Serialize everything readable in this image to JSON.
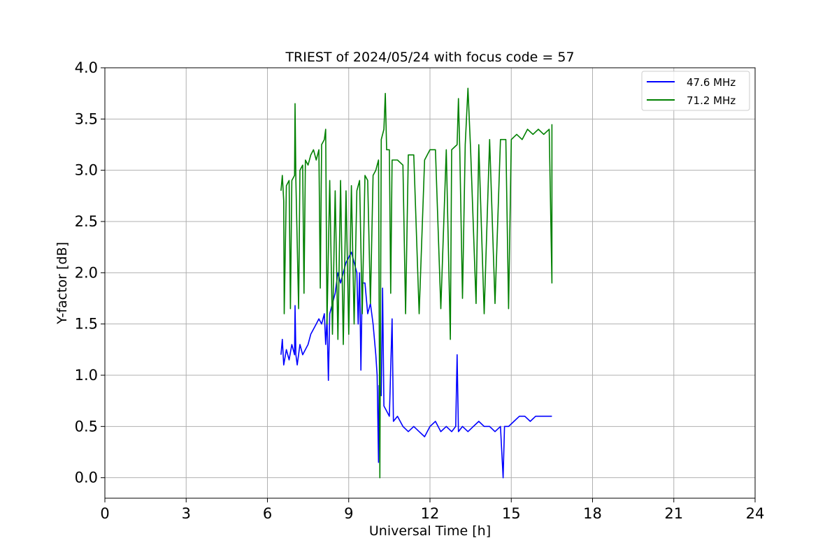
{
  "chart_data": {
    "type": "line",
    "title": "TRIEST of 2024/05/24 with focus code = 57",
    "xlabel": "Universal Time [h]",
    "ylabel": "Y-factor [dB]",
    "xlim": [
      0,
      24
    ],
    "ylim": [
      -0.2,
      4.0
    ],
    "xticks": [
      0,
      3,
      6,
      9,
      12,
      15,
      18,
      21,
      24
    ],
    "xtick_labels": [
      "0",
      "3",
      "6",
      "9",
      "12",
      "15",
      "18",
      "21",
      "24"
    ],
    "yticks": [
      0.0,
      0.5,
      1.0,
      1.5,
      2.0,
      2.5,
      3.0,
      3.5,
      4.0
    ],
    "ytick_labels": [
      "0.0",
      "0.5",
      "1.0",
      "1.5",
      "2.0",
      "2.5",
      "3.0",
      "3.5",
      "4.0"
    ],
    "grid": true,
    "legend_position": "top-right",
    "series": [
      {
        "name": "47.6 MHz",
        "color": "#0000ff",
        "points": [
          [
            6.5,
            1.2
          ],
          [
            6.55,
            1.35
          ],
          [
            6.6,
            1.1
          ],
          [
            6.7,
            1.25
          ],
          [
            6.8,
            1.15
          ],
          [
            6.9,
            1.3
          ],
          [
            7.0,
            1.2
          ],
          [
            7.02,
            1.68
          ],
          [
            7.05,
            1.2
          ],
          [
            7.1,
            1.1
          ],
          [
            7.2,
            1.3
          ],
          [
            7.3,
            1.2
          ],
          [
            7.4,
            1.25
          ],
          [
            7.5,
            1.3
          ],
          [
            7.6,
            1.4
          ],
          [
            7.7,
            1.45
          ],
          [
            7.8,
            1.5
          ],
          [
            7.9,
            1.55
          ],
          [
            8.0,
            1.5
          ],
          [
            8.1,
            1.6
          ],
          [
            8.15,
            1.3
          ],
          [
            8.2,
            1.55
          ],
          [
            8.25,
            0.95
          ],
          [
            8.3,
            1.6
          ],
          [
            8.4,
            1.7
          ],
          [
            8.5,
            1.8
          ],
          [
            8.6,
            2.0
          ],
          [
            8.7,
            1.9
          ],
          [
            8.8,
            2.0
          ],
          [
            8.9,
            2.1
          ],
          [
            9.0,
            2.15
          ],
          [
            9.1,
            2.2
          ],
          [
            9.2,
            2.1
          ],
          [
            9.3,
            2.0
          ],
          [
            9.35,
            1.5
          ],
          [
            9.4,
            2.0
          ],
          [
            9.45,
            1.05
          ],
          [
            9.5,
            1.9
          ],
          [
            9.6,
            1.9
          ],
          [
            9.7,
            1.6
          ],
          [
            9.8,
            1.7
          ],
          [
            9.9,
            1.5
          ],
          [
            10.0,
            1.2
          ],
          [
            10.05,
            1.0
          ],
          [
            10.1,
            0.15
          ],
          [
            10.12,
            0.9
          ],
          [
            10.2,
            0.8
          ],
          [
            10.25,
            1.85
          ],
          [
            10.3,
            0.7
          ],
          [
            10.4,
            0.65
          ],
          [
            10.5,
            0.6
          ],
          [
            10.6,
            1.55
          ],
          [
            10.65,
            0.55
          ],
          [
            10.8,
            0.6
          ],
          [
            11.0,
            0.5
          ],
          [
            11.2,
            0.45
          ],
          [
            11.4,
            0.5
          ],
          [
            11.6,
            0.45
          ],
          [
            11.8,
            0.4
          ],
          [
            12.0,
            0.5
          ],
          [
            12.2,
            0.55
          ],
          [
            12.4,
            0.45
          ],
          [
            12.6,
            0.5
          ],
          [
            12.8,
            0.45
          ],
          [
            12.95,
            0.5
          ],
          [
            13.0,
            1.2
          ],
          [
            13.05,
            0.45
          ],
          [
            13.2,
            0.5
          ],
          [
            13.4,
            0.45
          ],
          [
            13.6,
            0.5
          ],
          [
            13.8,
            0.55
          ],
          [
            14.0,
            0.5
          ],
          [
            14.2,
            0.5
          ],
          [
            14.4,
            0.45
          ],
          [
            14.6,
            0.5
          ],
          [
            14.7,
            0.0
          ],
          [
            14.75,
            0.5
          ],
          [
            14.9,
            0.5
          ],
          [
            15.1,
            0.55
          ],
          [
            15.3,
            0.6
          ],
          [
            15.5,
            0.6
          ],
          [
            15.7,
            0.55
          ],
          [
            15.9,
            0.6
          ],
          [
            16.1,
            0.6
          ],
          [
            16.3,
            0.6
          ],
          [
            16.5,
            0.6
          ]
        ]
      },
      {
        "name": "71.2 MHz",
        "color": "#008000",
        "points": [
          [
            6.5,
            2.8
          ],
          [
            6.55,
            2.95
          ],
          [
            6.6,
            2.7
          ],
          [
            6.62,
            1.6
          ],
          [
            6.7,
            2.85
          ],
          [
            6.8,
            2.9
          ],
          [
            6.85,
            1.65
          ],
          [
            6.9,
            2.9
          ],
          [
            7.0,
            2.95
          ],
          [
            7.02,
            3.65
          ],
          [
            7.05,
            2.9
          ],
          [
            7.15,
            1.65
          ],
          [
            7.2,
            3.0
          ],
          [
            7.3,
            3.05
          ],
          [
            7.35,
            1.8
          ],
          [
            7.4,
            3.1
          ],
          [
            7.5,
            3.05
          ],
          [
            7.6,
            3.15
          ],
          [
            7.7,
            3.2
          ],
          [
            7.8,
            3.1
          ],
          [
            7.9,
            3.2
          ],
          [
            7.95,
            1.85
          ],
          [
            8.0,
            3.25
          ],
          [
            8.1,
            3.3
          ],
          [
            8.15,
            3.4
          ],
          [
            8.2,
            1.5
          ],
          [
            8.3,
            2.9
          ],
          [
            8.4,
            1.4
          ],
          [
            8.5,
            2.8
          ],
          [
            8.6,
            1.35
          ],
          [
            8.7,
            2.9
          ],
          [
            8.8,
            1.3
          ],
          [
            8.9,
            2.8
          ],
          [
            9.0,
            1.4
          ],
          [
            9.1,
            2.85
          ],
          [
            9.2,
            1.5
          ],
          [
            9.3,
            2.8
          ],
          [
            9.4,
            2.9
          ],
          [
            9.5,
            1.6
          ],
          [
            9.6,
            2.95
          ],
          [
            9.7,
            2.9
          ],
          [
            9.8,
            1.7
          ],
          [
            9.9,
            2.95
          ],
          [
            10.0,
            3.0
          ],
          [
            10.1,
            3.1
          ],
          [
            10.15,
            0.0
          ],
          [
            10.2,
            3.3
          ],
          [
            10.3,
            3.4
          ],
          [
            10.35,
            3.75
          ],
          [
            10.4,
            3.2
          ],
          [
            10.5,
            3.2
          ],
          [
            10.55,
            1.8
          ],
          [
            10.6,
            3.1
          ],
          [
            10.8,
            3.1
          ],
          [
            11.0,
            3.05
          ],
          [
            11.1,
            1.6
          ],
          [
            11.2,
            3.15
          ],
          [
            11.4,
            3.15
          ],
          [
            11.6,
            1.6
          ],
          [
            11.8,
            3.1
          ],
          [
            12.0,
            3.2
          ],
          [
            12.2,
            3.2
          ],
          [
            12.4,
            1.65
          ],
          [
            12.6,
            3.2
          ],
          [
            12.75,
            1.35
          ],
          [
            12.8,
            3.2
          ],
          [
            13.0,
            3.25
          ],
          [
            13.05,
            3.7
          ],
          [
            13.1,
            3.2
          ],
          [
            13.2,
            1.75
          ],
          [
            13.3,
            3.25
          ],
          [
            13.4,
            3.8
          ],
          [
            13.5,
            3.2
          ],
          [
            13.7,
            1.7
          ],
          [
            13.8,
            3.25
          ],
          [
            14.0,
            1.6
          ],
          [
            14.2,
            3.3
          ],
          [
            14.4,
            1.7
          ],
          [
            14.6,
            3.3
          ],
          [
            14.8,
            3.3
          ],
          [
            14.9,
            1.65
          ],
          [
            15.0,
            3.3
          ],
          [
            15.2,
            3.35
          ],
          [
            15.4,
            3.3
          ],
          [
            15.6,
            3.4
          ],
          [
            15.8,
            3.35
          ],
          [
            16.0,
            3.4
          ],
          [
            16.2,
            3.35
          ],
          [
            16.4,
            3.4
          ],
          [
            16.5,
            1.9
          ],
          [
            16.5,
            3.45
          ]
        ]
      }
    ]
  }
}
